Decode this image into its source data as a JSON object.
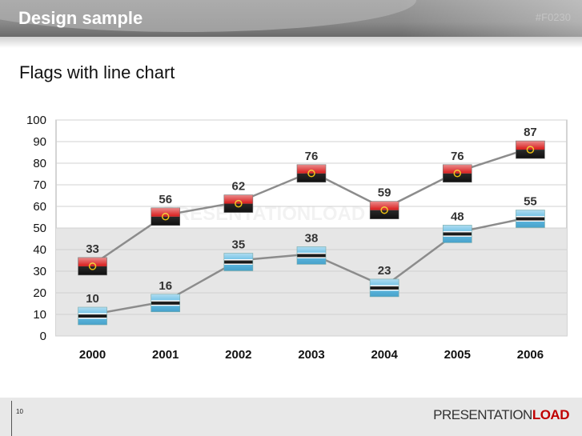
{
  "header": {
    "title": "Design sample",
    "code": "#F0230"
  },
  "subtitle": "Flags with line chart",
  "footer": {
    "page": "10",
    "logo_left": "PRESENTATION",
    "logo_right": "LOAD"
  },
  "chart_data": {
    "type": "line",
    "title": "Flags with line chart",
    "categories": [
      "2000",
      "2001",
      "2002",
      "2003",
      "2004",
      "2005",
      "2006"
    ],
    "ylim": [
      0,
      100
    ],
    "yticks": [
      0,
      10,
      20,
      30,
      40,
      50,
      60,
      70,
      80,
      90,
      100
    ],
    "grid": true,
    "series": [
      {
        "name": "Angola",
        "marker": "angola-flag",
        "values": [
          33,
          56,
          62,
          76,
          59,
          76,
          87
        ]
      },
      {
        "name": "Botswana",
        "marker": "botswana-flag",
        "values": [
          10,
          16,
          35,
          38,
          23,
          48,
          55
        ]
      }
    ],
    "colors": {
      "line": "#8c8c8c",
      "lower_band": "#e6e6e6",
      "grid": "#d0d0d0"
    }
  }
}
